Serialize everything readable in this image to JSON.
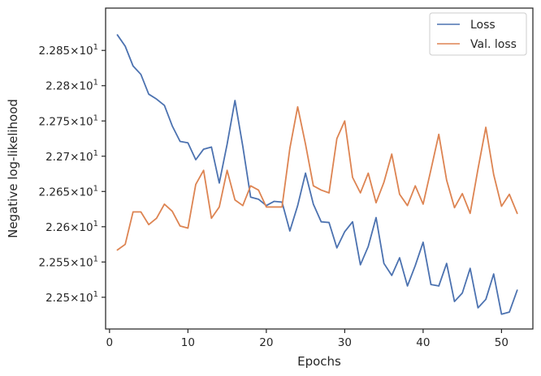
{
  "chart_data": {
    "type": "line",
    "xlabel": "Epochs",
    "ylabel": "Negative log-likelihood",
    "xlim": [
      -0.5,
      54
    ],
    "ylim": [
      22.455,
      22.91
    ],
    "grid": false,
    "legend_position": "top-right",
    "x_ticks": [
      0,
      10,
      20,
      30,
      40,
      50
    ],
    "x_tick_labels": [
      "0",
      "10",
      "20",
      "30",
      "40",
      "50"
    ],
    "y_ticks": [
      22.5,
      22.55,
      22.6,
      22.65,
      22.7,
      22.75,
      22.8,
      22.85
    ],
    "y_tick_labels": [
      {
        "mantissa": "2.25",
        "base": "10",
        "exp": "1"
      },
      {
        "mantissa": "2.255",
        "base": "10",
        "exp": "1"
      },
      {
        "mantissa": "2.26",
        "base": "10",
        "exp": "1"
      },
      {
        "mantissa": "2.265",
        "base": "10",
        "exp": "1"
      },
      {
        "mantissa": "2.27",
        "base": "10",
        "exp": "1"
      },
      {
        "mantissa": "2.275",
        "base": "10",
        "exp": "1"
      },
      {
        "mantissa": "2.28",
        "base": "10",
        "exp": "1"
      },
      {
        "mantissa": "2.285",
        "base": "10",
        "exp": "1"
      }
    ],
    "x": [
      1,
      2,
      3,
      4,
      5,
      6,
      7,
      8,
      9,
      10,
      11,
      12,
      13,
      14,
      15,
      16,
      17,
      18,
      19,
      20,
      21,
      22,
      23,
      24,
      25,
      26,
      27,
      28,
      29,
      30,
      31,
      32,
      33,
      34,
      35,
      36,
      37,
      38,
      39,
      40,
      41,
      42,
      43,
      44,
      45,
      46,
      47,
      48,
      49,
      50,
      51,
      52
    ],
    "series": [
      {
        "name": "Loss",
        "color": "#4c72b0",
        "values": [
          22.872,
          22.856,
          22.828,
          22.816,
          22.788,
          22.781,
          22.772,
          22.743,
          22.721,
          22.719,
          22.695,
          22.71,
          22.713,
          22.662,
          22.717,
          22.779,
          22.714,
          22.642,
          22.639,
          22.63,
          22.636,
          22.635,
          22.594,
          22.63,
          22.676,
          22.632,
          22.607,
          22.606,
          22.57,
          22.593,
          22.607,
          22.546,
          22.572,
          22.613,
          22.548,
          22.531,
          22.556,
          22.516,
          22.545,
          22.578,
          22.518,
          22.516,
          22.548,
          22.494,
          22.506,
          22.541,
          22.485,
          22.497,
          22.533,
          22.476,
          22.479,
          22.51
        ]
      },
      {
        "name": "Val. loss",
        "color": "#dd8452",
        "values": [
          22.567,
          22.575,
          22.621,
          22.621,
          22.603,
          22.612,
          22.632,
          22.622,
          22.601,
          22.598,
          22.66,
          22.68,
          22.612,
          22.628,
          22.68,
          22.638,
          22.63,
          22.658,
          22.652,
          22.628,
          22.628,
          22.628,
          22.711,
          22.77,
          22.717,
          22.658,
          22.652,
          22.648,
          22.725,
          22.75,
          22.67,
          22.648,
          22.676,
          22.634,
          22.663,
          22.703,
          22.646,
          22.63,
          22.658,
          22.632,
          22.681,
          22.731,
          22.666,
          22.627,
          22.647,
          22.619,
          22.682,
          22.741,
          22.674,
          22.629,
          22.646,
          22.619
        ]
      }
    ]
  }
}
